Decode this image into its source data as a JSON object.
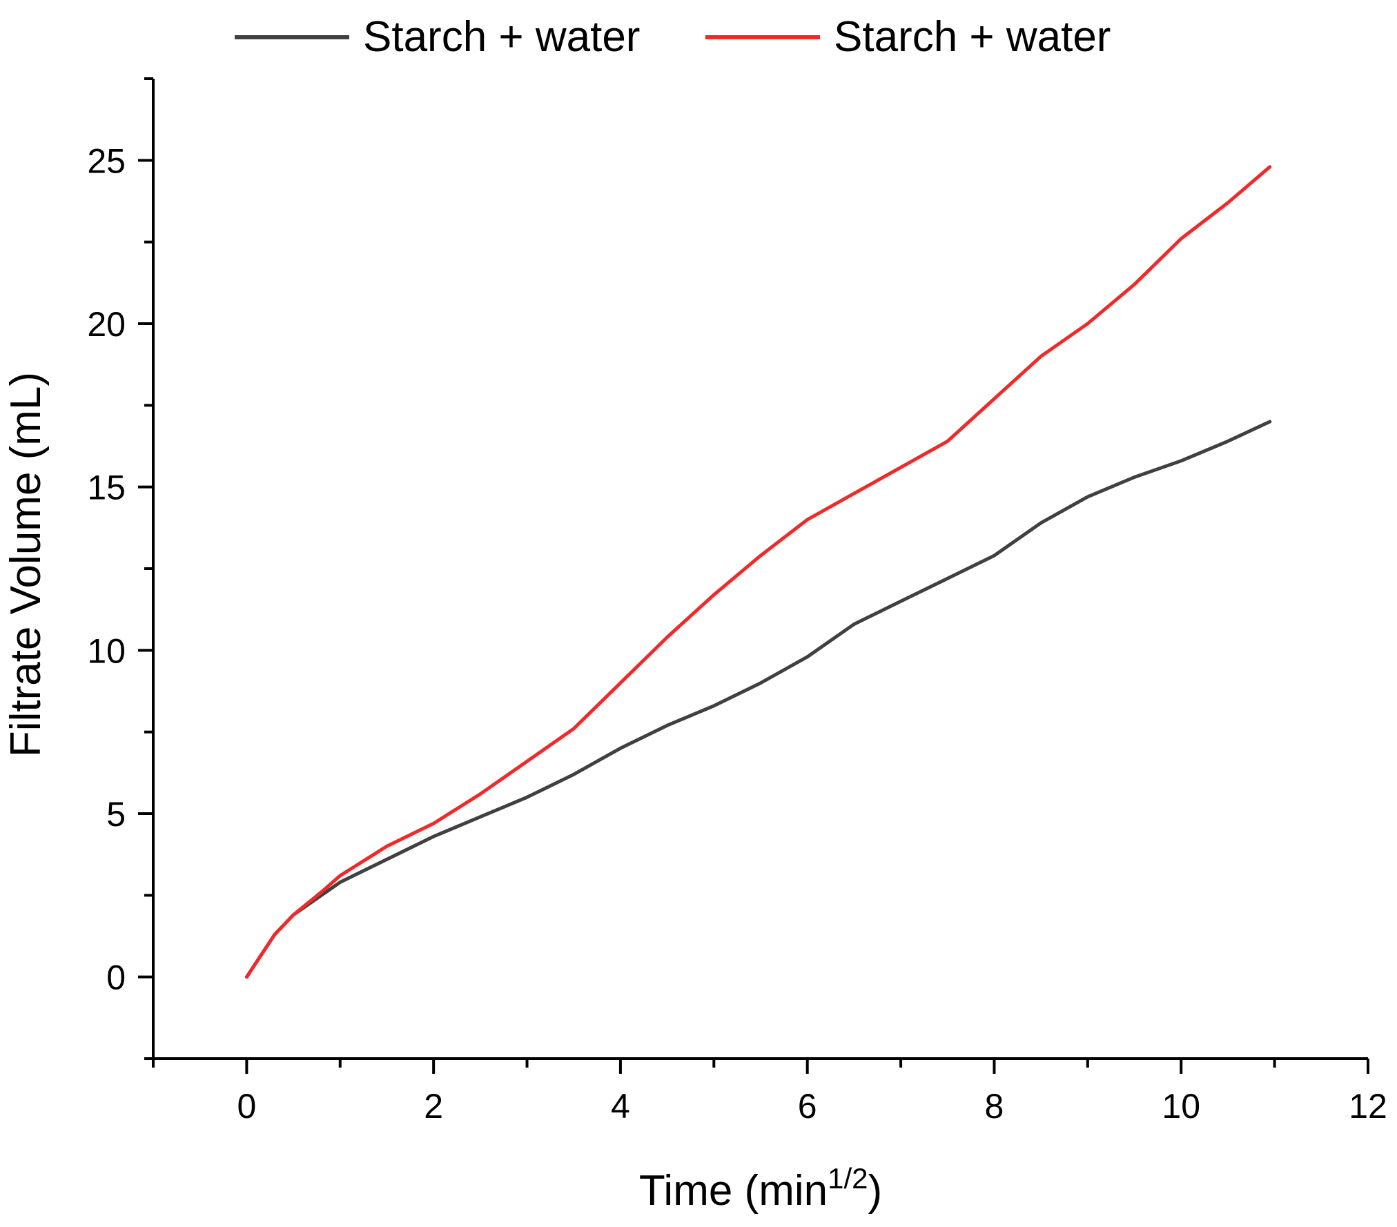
{
  "chart_data": {
    "type": "line",
    "title": "",
    "xlabel": "Time (min",
    "xlabel_sup": "1/2",
    "xlabel_close": ")",
    "ylabel": "Filtrate Volume (mL)",
    "xlim": [
      -1,
      12
    ],
    "ylim": [
      -2.5,
      27.5
    ],
    "xticks": [
      0,
      2,
      4,
      6,
      8,
      10,
      12
    ],
    "yticks": [
      0,
      5,
      10,
      15,
      20,
      25
    ],
    "grid": false,
    "legend_position": "top",
    "series": [
      {
        "name": "Starch + water",
        "color": "#404040",
        "x": [
          0,
          0.3,
          0.5,
          0.8,
          1.0,
          1.5,
          2.0,
          2.5,
          3.0,
          3.5,
          4.0,
          4.5,
          5.0,
          5.5,
          6.0,
          6.5,
          7.0,
          7.5,
          8.0,
          8.5,
          9.0,
          9.5,
          10.0,
          10.5,
          10.95
        ],
        "y": [
          0,
          1.3,
          1.9,
          2.5,
          2.9,
          3.6,
          4.3,
          4.9,
          5.5,
          6.2,
          7.0,
          7.7,
          8.3,
          9.0,
          9.8,
          10.8,
          11.5,
          12.2,
          12.9,
          13.9,
          14.7,
          15.3,
          15.8,
          16.4,
          17.0
        ]
      },
      {
        "name": "Starch + water",
        "color": "#ee2a2a",
        "x": [
          0,
          0.3,
          0.5,
          0.8,
          1.0,
          1.5,
          2.0,
          2.5,
          3.0,
          3.5,
          4.0,
          4.5,
          5.0,
          5.5,
          6.0,
          6.5,
          7.0,
          7.5,
          8.0,
          8.5,
          9.0,
          9.5,
          10.0,
          10.5,
          10.95
        ],
        "y": [
          0,
          1.3,
          1.9,
          2.6,
          3.1,
          4.0,
          4.7,
          5.6,
          6.6,
          7.6,
          9.0,
          10.4,
          11.7,
          12.9,
          14.0,
          14.8,
          15.6,
          16.4,
          17.7,
          19.0,
          20.0,
          21.2,
          22.6,
          23.7,
          24.8
        ]
      }
    ]
  }
}
